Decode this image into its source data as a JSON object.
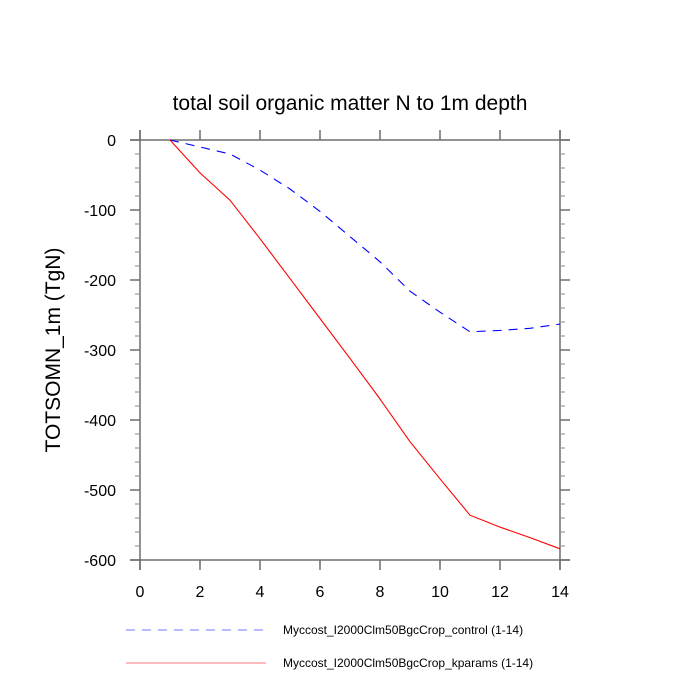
{
  "chart_data": {
    "type": "line",
    "title": "total soil organic matter N to 1m depth",
    "xlabel": "",
    "ylabel": "TOTSOMN_1m  (TgN)",
    "xlim": [
      0,
      14
    ],
    "ylim": [
      -600,
      0
    ],
    "xticks": [
      0,
      2,
      4,
      6,
      8,
      10,
      12,
      14
    ],
    "xtick_labels": [
      "0",
      "2",
      "4",
      "6",
      "8",
      "10",
      "12",
      "14"
    ],
    "yticks": [
      0,
      -100,
      -200,
      -300,
      -400,
      -500,
      -600
    ],
    "ytick_labels": [
      "0",
      "-100",
      "-200",
      "-300",
      "-400",
      "-500",
      "-600"
    ],
    "yminor_step": 20,
    "grid": false,
    "legend_position": "bottom",
    "x": [
      1,
      2,
      3,
      4,
      5,
      6,
      7,
      8,
      9,
      10,
      11,
      12,
      13,
      14
    ],
    "series": [
      {
        "name": "Myccost_I2000Clm50BgcCrop_control (1-14)",
        "color": "#0000ff",
        "style": "dashed",
        "values": [
          0,
          -10,
          -20,
          -43,
          -70,
          -102,
          -138,
          -174,
          -216,
          -246,
          -274,
          -272,
          -269,
          -263
        ]
      },
      {
        "name": "Myccost_I2000Clm50BgcCrop_kparams (1-14)",
        "color": "#ff0000",
        "style": "solid",
        "values": [
          0,
          -47,
          -86,
          -141,
          -198,
          -255,
          -312,
          -370,
          -431,
          -484,
          -536,
          -553,
          -568,
          -584
        ]
      }
    ]
  }
}
